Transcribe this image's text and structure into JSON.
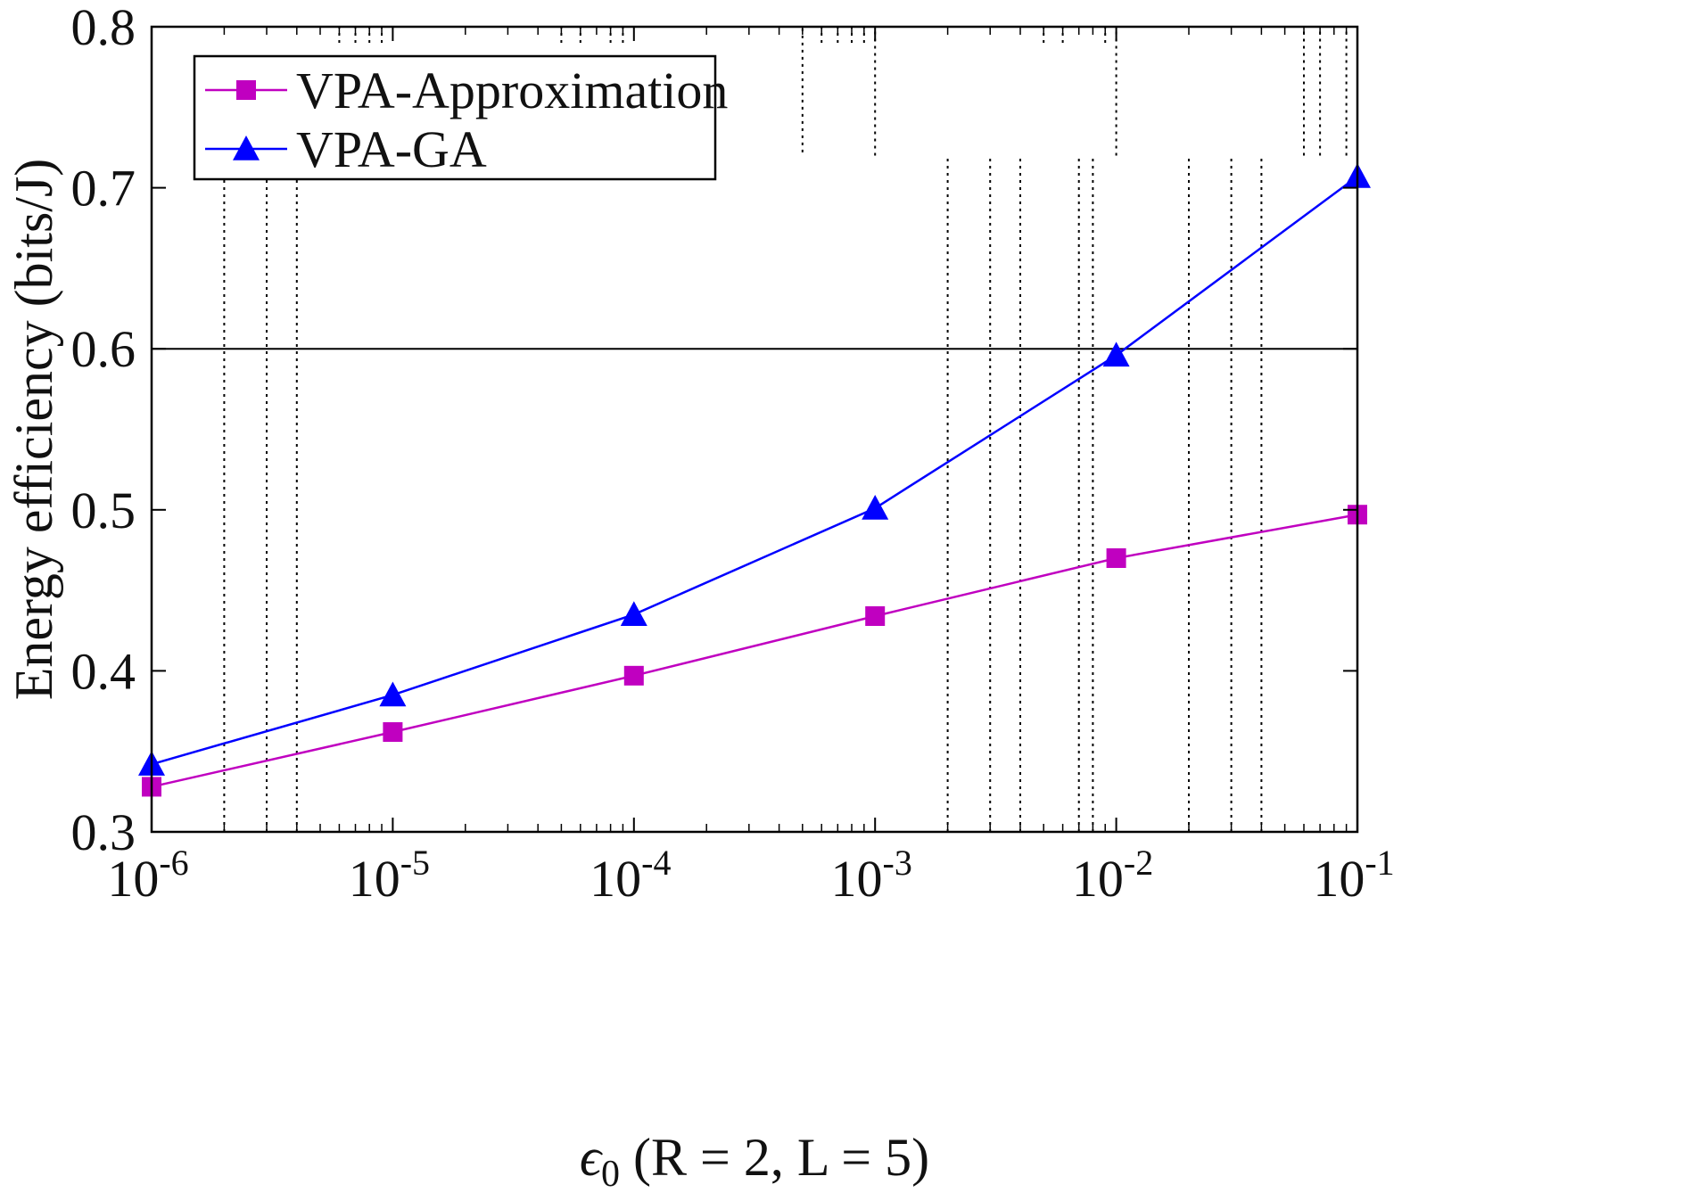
{
  "chart_data": {
    "type": "line",
    "x_scale": "log",
    "x": [
      1e-06,
      1e-05,
      0.0001,
      0.001,
      0.01,
      0.1
    ],
    "x_tick_labels": [
      {
        "base": "10",
        "exp": "-6"
      },
      {
        "base": "10",
        "exp": "-5"
      },
      {
        "base": "10",
        "exp": "-4"
      },
      {
        "base": "10",
        "exp": "-3"
      },
      {
        "base": "10",
        "exp": "-2"
      },
      {
        "base": "10",
        "exp": "-1"
      }
    ],
    "y_ticks": [
      "0.3",
      "0.4",
      "0.5",
      "0.6",
      "0.7",
      "0.8"
    ],
    "xlim": [
      1e-06,
      0.1
    ],
    "ylim": [
      0.3,
      0.8
    ],
    "xlabel": {
      "epsilon": "ϵ",
      "subscript": "0",
      "rest": " (R = 2, L = 5)"
    },
    "ylabel": "Energy efficiency (bits/J)",
    "reference_line_y": 0.6,
    "legend_position": "top-left",
    "series": [
      {
        "name": "VPA-Approximation",
        "color": "#c000c0",
        "marker": "square",
        "values": [
          0.328,
          0.362,
          0.397,
          0.434,
          0.47,
          0.497
        ]
      },
      {
        "name": "VPA-GA",
        "color": "#0000ff",
        "marker": "triangle",
        "values": [
          0.342,
          0.385,
          0.435,
          0.501,
          0.596,
          0.707
        ]
      }
    ],
    "dotted_minor_lines": [
      {
        "x": 2e-06,
        "y_from": 0.3,
        "y_to": 0.72
      },
      {
        "x": 3e-06,
        "y_from": 0.3,
        "y_to": 0.72
      },
      {
        "x": 4e-06,
        "y_from": 0.3,
        "y_to": 0.72
      },
      {
        "x": 6e-06,
        "y_from": 0.79,
        "y_to": 0.8
      },
      {
        "x": 7e-06,
        "y_from": 0.79,
        "y_to": 0.8
      },
      {
        "x": 8e-06,
        "y_from": 0.79,
        "y_to": 0.8
      },
      {
        "x": 9e-06,
        "y_from": 0.79,
        "y_to": 0.8
      },
      {
        "x": 5e-05,
        "y_from": 0.79,
        "y_to": 0.8
      },
      {
        "x": 6e-05,
        "y_from": 0.79,
        "y_to": 0.8
      },
      {
        "x": 8e-05,
        "y_from": 0.79,
        "y_to": 0.8
      },
      {
        "x": 9e-05,
        "y_from": 0.79,
        "y_to": 0.8
      },
      {
        "x": 0.0005,
        "y_from": 0.722,
        "y_to": 0.8
      },
      {
        "x": 0.0006,
        "y_from": 0.79,
        "y_to": 0.8
      },
      {
        "x": 0.0007,
        "y_from": 0.79,
        "y_to": 0.8
      },
      {
        "x": 0.0008,
        "y_from": 0.79,
        "y_to": 0.8
      },
      {
        "x": 0.0009,
        "y_from": 0.79,
        "y_to": 0.8
      },
      {
        "x": 0.001,
        "y_from": 0.72,
        "y_to": 0.8
      },
      {
        "x": 0.002,
        "y_from": 0.3,
        "y_to": 0.72
      },
      {
        "x": 0.003,
        "y_from": 0.3,
        "y_to": 0.72
      },
      {
        "x": 0.004,
        "y_from": 0.3,
        "y_to": 0.72
      },
      {
        "x": 0.005,
        "y_from": 0.79,
        "y_to": 0.8
      },
      {
        "x": 0.006,
        "y_from": 0.79,
        "y_to": 0.8
      },
      {
        "x": 0.007,
        "y_from": 0.3,
        "y_to": 0.72
      },
      {
        "x": 0.008,
        "y_from": 0.3,
        "y_to": 0.72
      },
      {
        "x": 0.009,
        "y_from": 0.79,
        "y_to": 0.8
      },
      {
        "x": 0.01,
        "y_from": 0.72,
        "y_to": 0.8
      },
      {
        "x": 0.02,
        "y_from": 0.3,
        "y_to": 0.72
      },
      {
        "x": 0.03,
        "y_from": 0.3,
        "y_to": 0.72
      },
      {
        "x": 0.04,
        "y_from": 0.3,
        "y_to": 0.72
      },
      {
        "x": 0.06,
        "y_from": 0.72,
        "y_to": 0.8
      },
      {
        "x": 0.07,
        "y_from": 0.72,
        "y_to": 0.8
      },
      {
        "x": 0.09,
        "y_from": 0.72,
        "y_to": 0.8
      }
    ]
  }
}
